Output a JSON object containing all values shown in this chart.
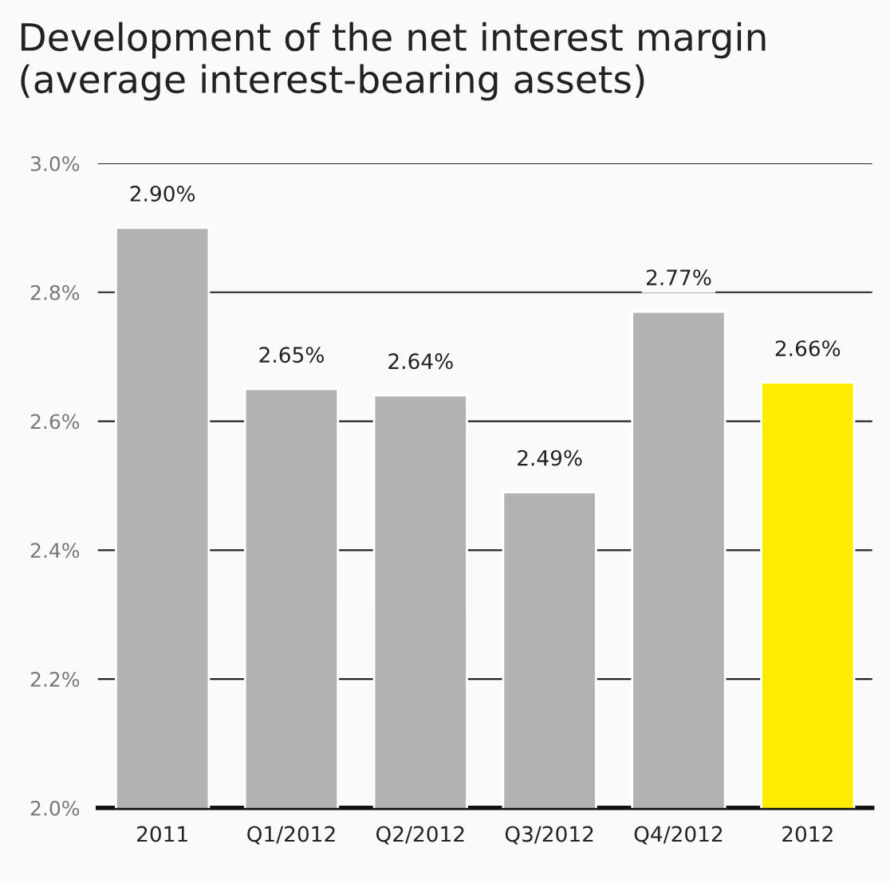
{
  "chart_data": {
    "type": "bar",
    "title": "Development of the net interest margin\n(average interest-bearing assets)",
    "categories": [
      "2011",
      "Q1/2012",
      "Q2/2012",
      "Q3/2012",
      "Q4/2012",
      "2012"
    ],
    "values": [
      2.9,
      2.65,
      2.64,
      2.49,
      2.77,
      2.66
    ],
    "colors": [
      "#b2b2b2",
      "#b2b2b2",
      "#b2b2b2",
      "#b2b2b2",
      "#b2b2b2",
      "#ffec00"
    ],
    "value_labels": [
      "2.90%",
      "2.65%",
      "2.64%",
      "2.49%",
      "2.77%",
      "2.66%"
    ],
    "ylim": [
      2.0,
      3.0
    ],
    "yticks": [
      {
        "value": 2.0,
        "label": "2.0%"
      },
      {
        "value": 2.2,
        "label": "2.2%"
      },
      {
        "value": 2.4,
        "label": "2.4%"
      },
      {
        "value": 2.6,
        "label": "2.6%"
      },
      {
        "value": 2.8,
        "label": "2.8%"
      },
      {
        "value": 3.0,
        "label": "3.0%"
      }
    ],
    "grid": "y"
  }
}
